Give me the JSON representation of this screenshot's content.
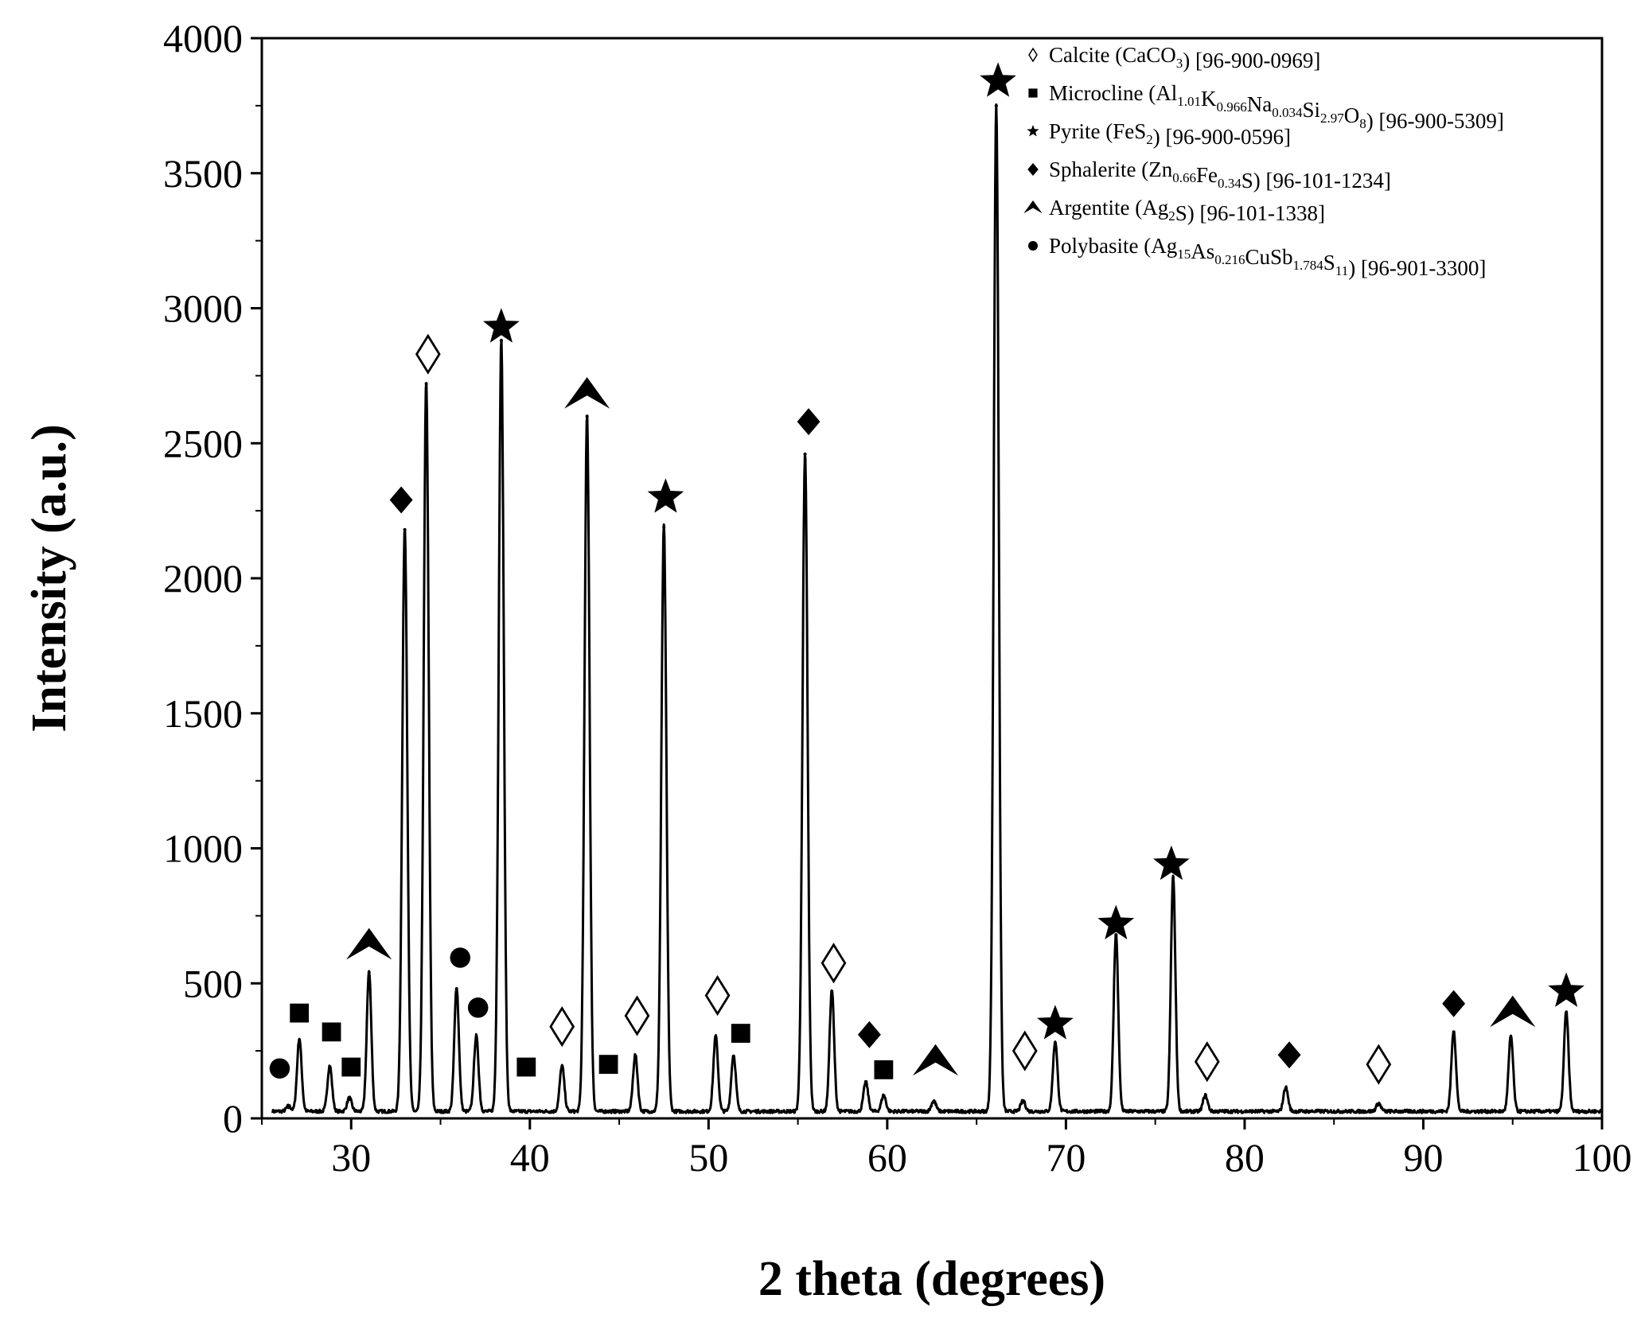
{
  "chart_data": {
    "type": "line",
    "xlabel": "2 theta (degrees)",
    "ylabel": "Intensity (a.u.)",
    "xlim": [
      25,
      100
    ],
    "ylim": [
      0,
      4000
    ],
    "xticks": [
      30,
      40,
      50,
      60,
      70,
      80,
      90,
      100
    ],
    "yticks": [
      0,
      500,
      1000,
      1500,
      2000,
      2500,
      3000,
      3500,
      4000
    ],
    "legend_position": "top-right",
    "grid": false,
    "baseline": 20,
    "peaks": [
      {
        "x": 26.5,
        "y": 40
      },
      {
        "x": 27.1,
        "y": 290
      },
      {
        "x": 28.8,
        "y": 190
      },
      {
        "x": 29.9,
        "y": 70
      },
      {
        "x": 31.0,
        "y": 540
      },
      {
        "x": 33.0,
        "y": 2180
      },
      {
        "x": 34.2,
        "y": 2720
      },
      {
        "x": 35.9,
        "y": 480
      },
      {
        "x": 37.0,
        "y": 300
      },
      {
        "x": 38.4,
        "y": 2880
      },
      {
        "x": 41.8,
        "y": 190
      },
      {
        "x": 43.2,
        "y": 2600
      },
      {
        "x": 45.9,
        "y": 230
      },
      {
        "x": 47.5,
        "y": 2190
      },
      {
        "x": 50.4,
        "y": 300
      },
      {
        "x": 51.4,
        "y": 230
      },
      {
        "x": 55.4,
        "y": 2460
      },
      {
        "x": 56.9,
        "y": 470
      },
      {
        "x": 58.8,
        "y": 130
      },
      {
        "x": 59.8,
        "y": 80
      },
      {
        "x": 62.6,
        "y": 60
      },
      {
        "x": 66.1,
        "y": 3750
      },
      {
        "x": 67.6,
        "y": 60
      },
      {
        "x": 69.4,
        "y": 280
      },
      {
        "x": 72.8,
        "y": 680
      },
      {
        "x": 76.0,
        "y": 890
      },
      {
        "x": 77.8,
        "y": 80
      },
      {
        "x": 82.3,
        "y": 110
      },
      {
        "x": 87.5,
        "y": 50
      },
      {
        "x": 91.7,
        "y": 320
      },
      {
        "x": 94.9,
        "y": 300
      },
      {
        "x": 98.0,
        "y": 390
      }
    ],
    "markers": [
      {
        "phase": "polybasite",
        "x": 26.0,
        "y": 185
      },
      {
        "phase": "microcline",
        "x": 27.1,
        "y": 390
      },
      {
        "phase": "microcline",
        "x": 28.9,
        "y": 320
      },
      {
        "phase": "microcline",
        "x": 30.0,
        "y": 190
      },
      {
        "phase": "argentite",
        "x": 31.0,
        "y": 640
      },
      {
        "phase": "sphalerite",
        "x": 32.8,
        "y": 2290
      },
      {
        "phase": "calcite",
        "x": 34.3,
        "y": 2830
      },
      {
        "phase": "polybasite",
        "x": 36.1,
        "y": 595
      },
      {
        "phase": "polybasite",
        "x": 37.1,
        "y": 410
      },
      {
        "phase": "pyrite",
        "x": 38.4,
        "y": 2930
      },
      {
        "phase": "microcline",
        "x": 39.8,
        "y": 190
      },
      {
        "phase": "calcite",
        "x": 41.8,
        "y": 340
      },
      {
        "phase": "argentite",
        "x": 43.2,
        "y": 2680
      },
      {
        "phase": "microcline",
        "x": 44.4,
        "y": 200
      },
      {
        "phase": "calcite",
        "x": 46.0,
        "y": 380
      },
      {
        "phase": "pyrite",
        "x": 47.6,
        "y": 2300
      },
      {
        "phase": "calcite",
        "x": 50.5,
        "y": 455
      },
      {
        "phase": "microcline",
        "x": 51.8,
        "y": 315
      },
      {
        "phase": "sphalerite",
        "x": 55.6,
        "y": 2580
      },
      {
        "phase": "calcite",
        "x": 57.0,
        "y": 575
      },
      {
        "phase": "sphalerite",
        "x": 59.0,
        "y": 310
      },
      {
        "phase": "microcline",
        "x": 59.8,
        "y": 180
      },
      {
        "phase": "argentite",
        "x": 62.7,
        "y": 210
      },
      {
        "phase": "pyrite",
        "x": 66.2,
        "y": 3840
      },
      {
        "phase": "calcite",
        "x": 67.7,
        "y": 250
      },
      {
        "phase": "pyrite",
        "x": 69.4,
        "y": 350
      },
      {
        "phase": "pyrite",
        "x": 72.8,
        "y": 720
      },
      {
        "phase": "pyrite",
        "x": 75.9,
        "y": 940
      },
      {
        "phase": "calcite",
        "x": 77.9,
        "y": 210
      },
      {
        "phase": "sphalerite",
        "x": 82.5,
        "y": 235
      },
      {
        "phase": "calcite",
        "x": 87.5,
        "y": 200
      },
      {
        "phase": "sphalerite",
        "x": 91.7,
        "y": 425
      },
      {
        "phase": "argentite",
        "x": 95.0,
        "y": 390
      },
      {
        "phase": "pyrite",
        "x": 98.0,
        "y": 470
      }
    ],
    "legend": [
      {
        "phase": "calcite",
        "parts": [
          [
            "Calcite (CaCO",
            false
          ],
          [
            "3",
            true
          ],
          [
            ") [96-900-0969]",
            false
          ]
        ]
      },
      {
        "phase": "microcline",
        "parts": [
          [
            "Microcline (Al",
            false
          ],
          [
            "1.01",
            true
          ],
          [
            "K",
            false
          ],
          [
            "0.966",
            true
          ],
          [
            "Na",
            false
          ],
          [
            "0.034",
            true
          ],
          [
            "Si",
            false
          ],
          [
            "2.97",
            true
          ],
          [
            "O",
            false
          ],
          [
            "8",
            true
          ],
          [
            ") [96-900-5309]",
            false
          ]
        ]
      },
      {
        "phase": "pyrite",
        "parts": [
          [
            "Pyrite (FeS",
            false
          ],
          [
            "2",
            true
          ],
          [
            ") [96-900-0596]",
            false
          ]
        ]
      },
      {
        "phase": "sphalerite",
        "parts": [
          [
            "Sphalerite (Zn",
            false
          ],
          [
            "0.66",
            true
          ],
          [
            "Fe",
            false
          ],
          [
            "0.34",
            true
          ],
          [
            "S) [96-101-1234]",
            false
          ]
        ]
      },
      {
        "phase": "argentite",
        "parts": [
          [
            "Argentite (Ag",
            false
          ],
          [
            "2",
            true
          ],
          [
            "S) [96-101-1338]",
            false
          ]
        ]
      },
      {
        "phase": "polybasite",
        "parts": [
          [
            "Polybasite (Ag",
            false
          ],
          [
            "15",
            true
          ],
          [
            "As",
            false
          ],
          [
            "0.216",
            true
          ],
          [
            "CuSb",
            false
          ],
          [
            "1.784",
            true
          ],
          [
            "S",
            false
          ],
          [
            "11",
            true
          ],
          [
            ") [96-901-3300]",
            false
          ]
        ]
      }
    ]
  }
}
